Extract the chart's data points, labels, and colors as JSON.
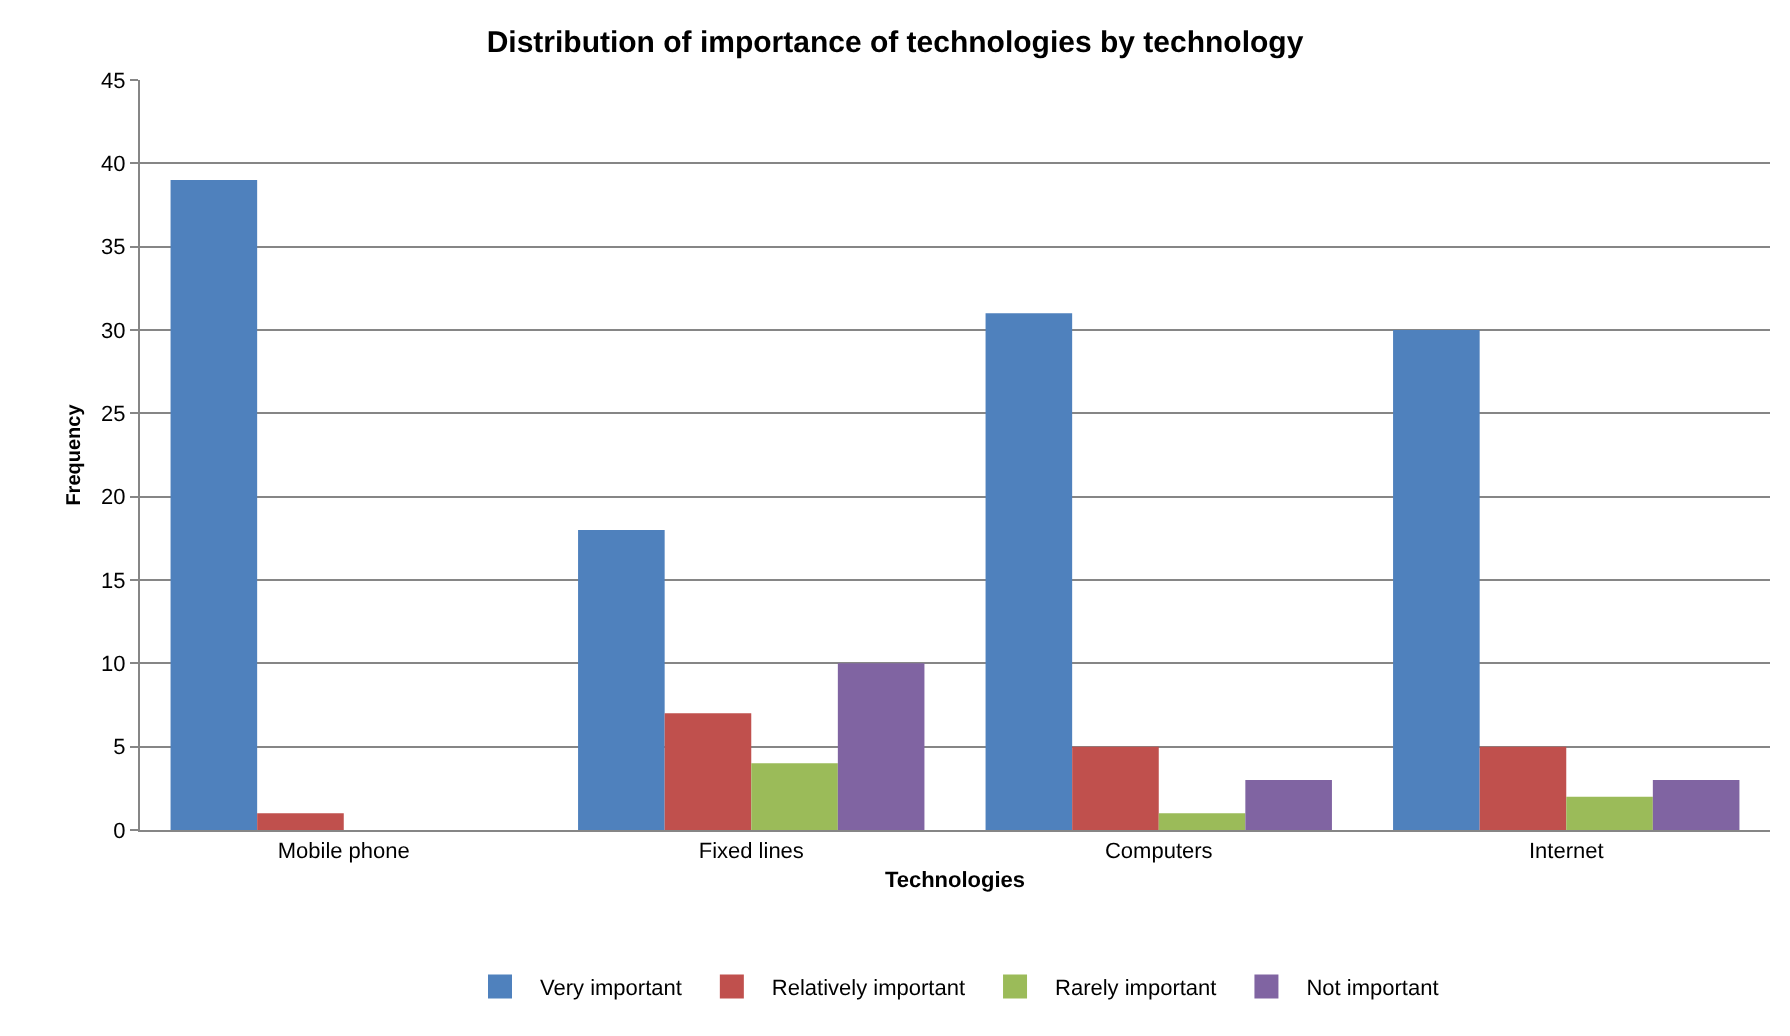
{
  "chart_data": {
    "type": "bar",
    "title": "Distribution of importance of technologies by technology",
    "xlabel": "Technologies",
    "ylabel": "Frequency",
    "categories": [
      "Mobile phone",
      "Fixed lines",
      "Computers",
      "Internet"
    ],
    "series": [
      {
        "name": "Very important",
        "color": "#4f81bd",
        "values": [
          39,
          18,
          31,
          30
        ]
      },
      {
        "name": "Relatively important",
        "color": "#c0504d",
        "values": [
          1,
          7,
          5,
          5
        ]
      },
      {
        "name": "Rarely important",
        "color": "#9bbb59",
        "values": [
          0,
          4,
          1,
          2
        ]
      },
      {
        "name": "Not important",
        "color": "#8064a2",
        "values": [
          0,
          10,
          3,
          3
        ]
      }
    ],
    "ylim": [
      0,
      45
    ],
    "yticks": [
      0,
      5,
      10,
      15,
      20,
      25,
      30,
      35,
      40,
      45
    ],
    "grid": "y",
    "legend": "bottom"
  }
}
